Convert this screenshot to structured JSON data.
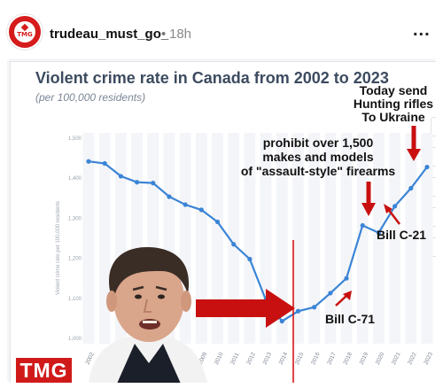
{
  "post": {
    "avatar_text": "TMG",
    "username": "trudeau_must_go_",
    "separator": "•",
    "time": "18h",
    "more_label": "..."
  },
  "chart_data": {
    "type": "line",
    "title": "Violent crime rate in Canada from 2002 to 2023",
    "subtitle": "(per 100,000 residents)",
    "ylabel": "Violent crime rate per 100,000 residents",
    "xlabel": "",
    "ylim": [
      1000,
      1500
    ],
    "yticks": [
      "1,500",
      "1,400",
      "1,300",
      "1,200",
      "1,100",
      "1,000"
    ],
    "x": [
      "2002",
      "2003",
      "2004",
      "2005",
      "2006",
      "2007",
      "2008",
      "2009",
      "2010",
      "2011",
      "2012",
      "2013",
      "2014",
      "2015",
      "2016",
      "2017",
      "2018",
      "2019",
      "2020",
      "2021",
      "2022",
      "2023"
    ],
    "series": [
      {
        "values": [
          1442,
          1437,
          1405,
          1390,
          1388,
          1354,
          1334,
          1321,
          1291,
          1235,
          1198,
          1096,
          1043,
          1068,
          1078,
          1113,
          1150,
          1282,
          1264,
          1330,
          1375,
          1428
        ]
      }
    ],
    "line_color": "#3b84d6",
    "grid": true
  },
  "annotations": {
    "ukraine": "Today send\nHunting rifles\nTo Ukraine",
    "firearms": "prohibit over 1,500\nmakes and models\nof \"assault-style\" firearms",
    "c21": "Bill C-21",
    "c71": "Bill C-71",
    "arrow_color": "#d81414"
  },
  "watermark": "TMG"
}
